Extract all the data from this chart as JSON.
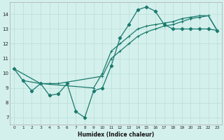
{
  "xlabel": "Humidex (Indice chaleur)",
  "background_color": "#d4f0ec",
  "line_color": "#1a7a6e",
  "grid_color": "#b8ddd8",
  "xlim": [
    -0.5,
    23.5
  ],
  "ylim": [
    6.5,
    14.8
  ],
  "xticks": [
    0,
    1,
    2,
    3,
    4,
    5,
    6,
    7,
    8,
    9,
    10,
    11,
    12,
    13,
    14,
    15,
    16,
    17,
    18,
    19,
    20,
    21,
    22,
    23
  ],
  "yticks": [
    7,
    8,
    9,
    10,
    11,
    12,
    13,
    14
  ],
  "curve_zigzag_x": [
    0,
    1,
    2,
    3,
    4,
    5,
    6,
    7,
    8,
    9,
    10,
    11,
    12,
    13,
    14,
    15,
    16,
    17,
    18,
    19,
    20,
    21,
    22,
    23
  ],
  "curve_zigzag_y": [
    10.3,
    9.5,
    8.8,
    9.3,
    8.5,
    8.6,
    9.3,
    7.4,
    7.0,
    8.8,
    9.0,
    10.5,
    12.4,
    13.3,
    14.3,
    14.5,
    14.2,
    13.3,
    13.0,
    13.0,
    13.0,
    13.0,
    13.0,
    12.9
  ],
  "line1_x": [
    0,
    23
  ],
  "line1_y": [
    9.3,
    13.0
  ],
  "line2_x": [
    0,
    23
  ],
  "line2_y": [
    10.2,
    12.9
  ],
  "line1_marker_x": [
    1,
    3,
    4,
    5,
    10,
    11,
    12,
    13,
    14,
    15,
    16,
    17,
    18,
    19,
    20,
    21,
    22,
    23
  ],
  "line1_marker_y": [
    9.5,
    9.3,
    9.3,
    9.3,
    9.8,
    11.0,
    11.5,
    12.0,
    12.5,
    12.8,
    13.0,
    13.2,
    13.3,
    13.5,
    13.7,
    13.8,
    13.9,
    12.9
  ],
  "line2_marker_x": [
    0,
    3,
    9,
    10,
    11,
    12,
    13,
    14,
    15,
    16,
    17,
    18,
    19,
    20,
    21,
    22,
    23
  ],
  "line2_marker_y": [
    10.3,
    9.3,
    9.0,
    10.0,
    11.5,
    12.0,
    12.5,
    13.0,
    13.2,
    13.3,
    13.4,
    13.5,
    13.7,
    13.8,
    13.9,
    13.9,
    12.9
  ]
}
